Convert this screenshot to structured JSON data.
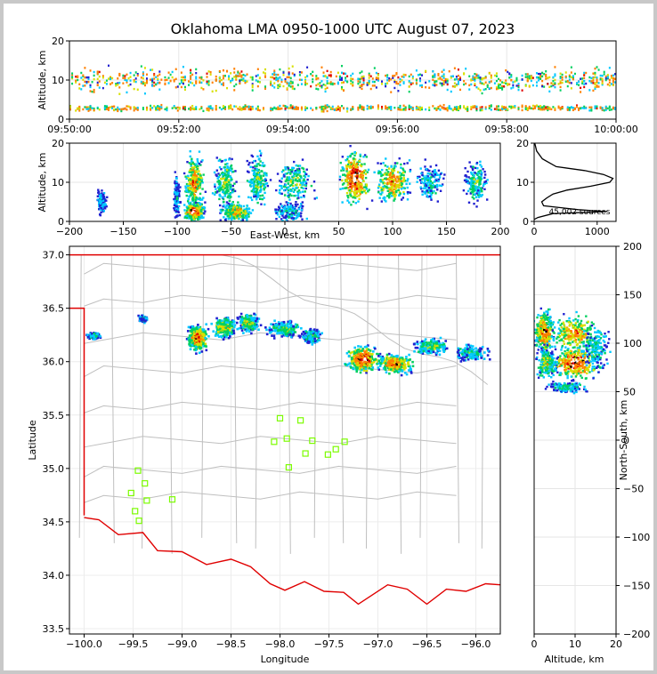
{
  "title": "Oklahoma LMA 0950-1000 UTC August 07, 2023",
  "colors": {
    "state_border": "#e00000",
    "county_lines": "#bfbfbf",
    "station_marker": "#7cfc00",
    "density_scale": [
      "#2020d0",
      "#00c8ff",
      "#00d060",
      "#d8e000",
      "#ff8000",
      "#e00000",
      "#000000",
      "#ffffff"
    ]
  },
  "chart_data": [
    {
      "type": "heatmap",
      "name": "time-altitude",
      "ylabel": "Altitude, km",
      "x_ticks": [
        "09:50:00",
        "09:52:00",
        "09:54:00",
        "09:56:00",
        "09:58:00",
        "10:00:00"
      ],
      "y_ticks": [
        "0",
        "10",
        "20"
      ],
      "xlim": [
        "09:50:00",
        "10:00:00"
      ],
      "ylim": [
        0,
        20
      ],
      "altitude_band_km": [
        0,
        18
      ],
      "peak_altitudes_km": [
        3,
        10
      ]
    },
    {
      "type": "heatmap",
      "name": "east-west-altitude",
      "xlabel": "East-West, km",
      "ylabel": "Altitude, km",
      "x_ticks": [
        "−200",
        "−150",
        "−100",
        "−50",
        "0",
        "50",
        "100",
        "150",
        "200"
      ],
      "y_ticks": [
        "0",
        "10",
        "20"
      ],
      "xlim": [
        -200,
        200
      ],
      "ylim": [
        0,
        20
      ],
      "cells": [
        {
          "x": -170,
          "y": 5,
          "w": 6,
          "h": 4,
          "density": 0.25
        },
        {
          "x": -100,
          "y": 6,
          "w": 4,
          "h": 8,
          "density": 0.2
        },
        {
          "x": -84,
          "y": 10,
          "w": 12,
          "h": 9,
          "density": 0.8
        },
        {
          "x": -84,
          "y": 2.5,
          "w": 12,
          "h": 3,
          "density": 1.0
        },
        {
          "x": -55,
          "y": 10,
          "w": 14,
          "h": 9,
          "density": 0.55
        },
        {
          "x": -45,
          "y": 2.5,
          "w": 20,
          "h": 3,
          "density": 0.7
        },
        {
          "x": -25,
          "y": 10,
          "w": 14,
          "h": 9,
          "density": 0.5
        },
        {
          "x": 10,
          "y": 10,
          "w": 22,
          "h": 7,
          "density": 0.5
        },
        {
          "x": 5,
          "y": 2.5,
          "w": 20,
          "h": 3,
          "density": 0.35
        },
        {
          "x": 65,
          "y": 11,
          "w": 18,
          "h": 9,
          "density": 1.0
        },
        {
          "x": 100,
          "y": 10,
          "w": 22,
          "h": 7,
          "density": 0.8
        },
        {
          "x": 135,
          "y": 10,
          "w": 16,
          "h": 6,
          "density": 0.4
        },
        {
          "x": 178,
          "y": 10,
          "w": 14,
          "h": 7,
          "density": 0.45
        }
      ]
    },
    {
      "type": "line",
      "name": "altitude-histogram",
      "x_ticks": [
        "0",
        "1000"
      ],
      "y_ticks": [
        "0",
        "10",
        "20"
      ],
      "xlim": [
        0,
        1300
      ],
      "ylim": [
        0,
        20
      ],
      "annotation": "45,002 sources",
      "profile": [
        {
          "count": 10,
          "alt": 20
        },
        {
          "count": 40,
          "alt": 18
        },
        {
          "count": 130,
          "alt": 16
        },
        {
          "count": 350,
          "alt": 14
        },
        {
          "count": 800,
          "alt": 13
        },
        {
          "count": 1100,
          "alt": 12
        },
        {
          "count": 1250,
          "alt": 11
        },
        {
          "count": 1200,
          "alt": 10
        },
        {
          "count": 900,
          "alt": 9
        },
        {
          "count": 520,
          "alt": 8
        },
        {
          "count": 300,
          "alt": 7
        },
        {
          "count": 200,
          "alt": 6
        },
        {
          "count": 120,
          "alt": 5
        },
        {
          "count": 150,
          "alt": 4
        },
        {
          "count": 700,
          "alt": 3
        },
        {
          "count": 1150,
          "alt": 2.5
        },
        {
          "count": 300,
          "alt": 2
        },
        {
          "count": 60,
          "alt": 1
        },
        {
          "count": 0,
          "alt": 0.5
        }
      ]
    },
    {
      "type": "heatmap",
      "name": "plan-view-map",
      "xlabel": "Longitude",
      "ylabel": "Latitude",
      "x_ticks": [
        "−100.0",
        "−99.5",
        "−99.0",
        "−98.5",
        "−98.0",
        "−97.5",
        "−97.0",
        "−96.5",
        "−96.0"
      ],
      "y_ticks": [
        "33.5",
        "34.0",
        "34.5",
        "35.0",
        "35.5",
        "36.0",
        "36.5",
        "37.0"
      ],
      "xlim": [
        -100.15,
        -95.75
      ],
      "ylim": [
        33.45,
        37.08
      ],
      "cells": [
        {
          "x": -99.9,
          "y": 36.24,
          "w": 0.08,
          "h": 0.04,
          "density": 0.45
        },
        {
          "x": -99.4,
          "y": 36.4,
          "w": 0.06,
          "h": 0.04,
          "density": 0.3
        },
        {
          "x": -98.84,
          "y": 36.22,
          "w": 0.14,
          "h": 0.16,
          "density": 0.9
        },
        {
          "x": -98.56,
          "y": 36.32,
          "w": 0.16,
          "h": 0.12,
          "density": 0.7
        },
        {
          "x": -98.32,
          "y": 36.36,
          "w": 0.14,
          "h": 0.1,
          "density": 0.65
        },
        {
          "x": -97.95,
          "y": 36.3,
          "w": 0.22,
          "h": 0.1,
          "density": 0.5
        },
        {
          "x": -97.68,
          "y": 36.24,
          "w": 0.14,
          "h": 0.1,
          "density": 0.4
        },
        {
          "x": -97.15,
          "y": 36.02,
          "w": 0.22,
          "h": 0.16,
          "density": 1.0
        },
        {
          "x": -96.82,
          "y": 35.98,
          "w": 0.24,
          "h": 0.12,
          "density": 0.85
        },
        {
          "x": -96.45,
          "y": 36.14,
          "w": 0.24,
          "h": 0.1,
          "density": 0.5
        },
        {
          "x": -96.05,
          "y": 36.08,
          "w": 0.22,
          "h": 0.1,
          "density": 0.4
        }
      ],
      "stations": [
        {
          "lon": -99.45,
          "lat": 34.98
        },
        {
          "lon": -99.38,
          "lat": 34.86
        },
        {
          "lon": -99.52,
          "lat": 34.77
        },
        {
          "lon": -99.36,
          "lat": 34.7
        },
        {
          "lon": -99.48,
          "lat": 34.6
        },
        {
          "lon": -99.44,
          "lat": 34.51
        },
        {
          "lon": -99.1,
          "lat": 34.71
        },
        {
          "lon": -98.0,
          "lat": 35.47
        },
        {
          "lon": -97.79,
          "lat": 35.45
        },
        {
          "lon": -98.06,
          "lat": 35.25
        },
        {
          "lon": -97.93,
          "lat": 35.28
        },
        {
          "lon": -97.67,
          "lat": 35.26
        },
        {
          "lon": -97.34,
          "lat": 35.25
        },
        {
          "lon": -97.43,
          "lat": 35.18
        },
        {
          "lon": -97.74,
          "lat": 35.14
        },
        {
          "lon": -97.51,
          "lat": 35.13
        },
        {
          "lon": -97.91,
          "lat": 35.01
        }
      ]
    },
    {
      "type": "heatmap",
      "name": "north-south-altitude",
      "xlabel": "Altitude, km",
      "ylabel": "North-South, km",
      "x_ticks": [
        "0",
        "10",
        "20"
      ],
      "y_ticks": [
        "−200",
        "−150",
        "−100",
        "−50",
        "0",
        "50",
        "100",
        "150",
        "200"
      ],
      "xlim": [
        0,
        20
      ],
      "ylim": [
        -200,
        200
      ],
      "cells": [
        {
          "x": 2.5,
          "y": 110,
          "w": 3,
          "h": 30,
          "density": 0.9
        },
        {
          "x": 10,
          "y": 110,
          "w": 8,
          "h": 25,
          "density": 0.8
        },
        {
          "x": 10,
          "y": 80,
          "w": 8,
          "h": 22,
          "density": 1.0
        },
        {
          "x": 3,
          "y": 80,
          "w": 3,
          "h": 22,
          "density": 0.6
        },
        {
          "x": 8,
          "y": 55,
          "w": 6,
          "h": 8,
          "density": 0.4
        },
        {
          "x": 15,
          "y": 95,
          "w": 5,
          "h": 30,
          "density": 0.4
        }
      ]
    }
  ]
}
